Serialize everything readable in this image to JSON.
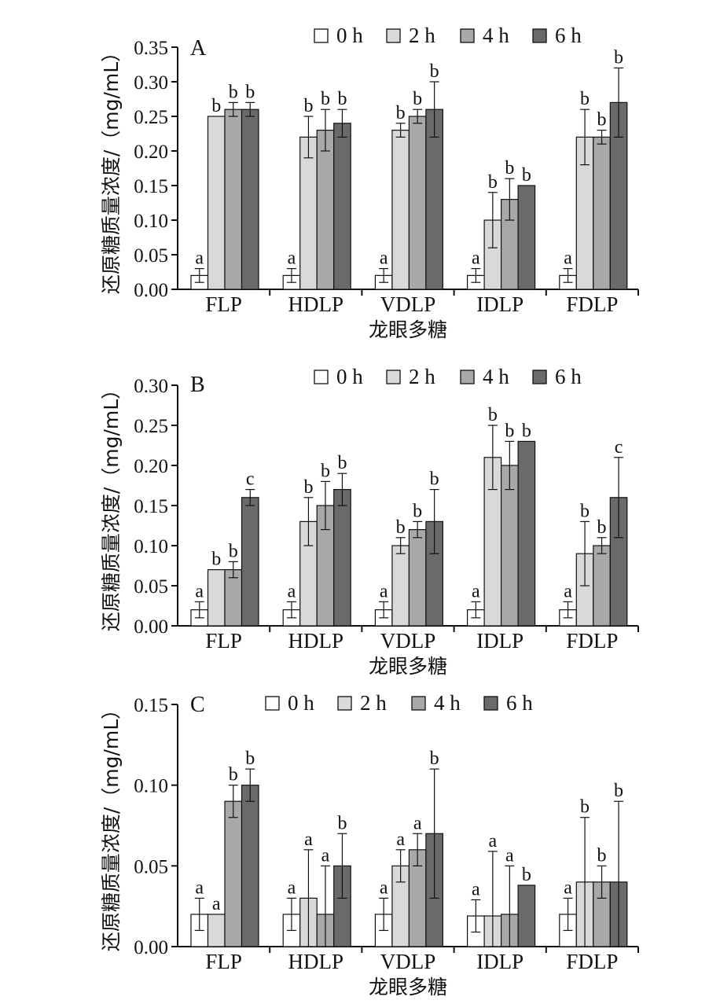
{
  "chart_data": [
    {
      "type": "bar",
      "panel": "A",
      "categories": [
        "FLP",
        "HDLP",
        "VDLP",
        "IDLP",
        "FDLP"
      ],
      "xlabel": "龙眼多糖",
      "ylabel": "还原糖质量浓度/（mg/mL）",
      "ylim": [
        0,
        0.35
      ],
      "yticks": [
        "0.00",
        "0.05",
        "0.10",
        "0.15",
        "0.20",
        "0.25",
        "0.30",
        "0.35"
      ],
      "legend_position": "top",
      "grid": false,
      "series": [
        {
          "name": "0 h",
          "values": [
            0.02,
            0.02,
            0.02,
            0.02,
            0.02
          ],
          "errors": [
            0.01,
            0.01,
            0.01,
            0.01,
            0.01
          ],
          "labels": [
            "a",
            "a",
            "a",
            "a",
            "a"
          ]
        },
        {
          "name": "2 h",
          "values": [
            0.25,
            0.22,
            0.23,
            0.1,
            0.22
          ],
          "errors": [
            0.0,
            0.03,
            0.01,
            0.04,
            0.04
          ],
          "labels": [
            "b",
            "b",
            "b",
            "b",
            "b"
          ]
        },
        {
          "name": "4 h",
          "values": [
            0.26,
            0.23,
            0.25,
            0.13,
            0.22
          ],
          "errors": [
            0.01,
            0.03,
            0.01,
            0.03,
            0.01
          ],
          "labels": [
            "b",
            "b",
            "b",
            "b",
            "b"
          ]
        },
        {
          "name": "6 h",
          "values": [
            0.26,
            0.24,
            0.26,
            0.15,
            0.27
          ],
          "errors": [
            0.01,
            0.02,
            0.04,
            0.0,
            0.05
          ],
          "labels": [
            "b",
            "b",
            "b",
            "b",
            "b"
          ]
        }
      ]
    },
    {
      "type": "bar",
      "panel": "B",
      "categories": [
        "FLP",
        "HDLP",
        "VDLP",
        "IDLP",
        "FDLP"
      ],
      "xlabel": "龙眼多糖",
      "ylabel": "还原糖质量浓度/（mg/mL）",
      "ylim": [
        0,
        0.3
      ],
      "yticks": [
        "0.00",
        "0.05",
        "0.10",
        "0.15",
        "0.20",
        "0.25",
        "0.30"
      ],
      "legend_position": "top",
      "grid": false,
      "series": [
        {
          "name": "0 h",
          "values": [
            0.02,
            0.02,
            0.02,
            0.02,
            0.02
          ],
          "errors": [
            0.01,
            0.01,
            0.01,
            0.01,
            0.01
          ],
          "labels": [
            "a",
            "a",
            "a",
            "a",
            "a"
          ]
        },
        {
          "name": "2 h",
          "values": [
            0.07,
            0.13,
            0.1,
            0.21,
            0.09
          ],
          "errors": [
            0.0,
            0.03,
            0.01,
            0.04,
            0.04
          ],
          "labels": [
            "b",
            "b",
            "b",
            "b",
            "b"
          ]
        },
        {
          "name": "4 h",
          "values": [
            0.07,
            0.15,
            0.12,
            0.2,
            0.1
          ],
          "errors": [
            0.01,
            0.03,
            0.01,
            0.03,
            0.01
          ],
          "labels": [
            "b",
            "b",
            "b",
            "b",
            "b"
          ]
        },
        {
          "name": "6 h",
          "values": [
            0.16,
            0.17,
            0.13,
            0.23,
            0.16
          ],
          "errors": [
            0.01,
            0.02,
            0.04,
            0.0,
            0.05
          ],
          "labels": [
            "c",
            "b",
            "b",
            "b",
            "c"
          ]
        }
      ]
    },
    {
      "type": "bar",
      "panel": "C",
      "categories": [
        "FLP",
        "HDLP",
        "VDLP",
        "IDLP",
        "FDLP"
      ],
      "xlabel": "龙眼多糖",
      "ylabel": "还原糖质量浓度/（mg/mL）",
      "ylim": [
        0,
        0.15
      ],
      "yticks": [
        "0.00",
        "0.05",
        "0.10",
        "0.15"
      ],
      "legend_position": "top",
      "grid": false,
      "series": [
        {
          "name": "0 h",
          "values": [
            0.02,
            0.02,
            0.02,
            0.019,
            0.02
          ],
          "errors": [
            0.01,
            0.01,
            0.01,
            0.01,
            0.01
          ],
          "labels": [
            "a",
            "a",
            "a",
            "a",
            "a"
          ]
        },
        {
          "name": "2 h",
          "values": [
            0.02,
            0.03,
            0.05,
            0.019,
            0.04
          ],
          "errors": [
            0.0,
            0.03,
            0.01,
            0.04,
            0.04
          ],
          "labels": [
            "a",
            "a",
            "a",
            "a",
            "b"
          ]
        },
        {
          "name": "4 h",
          "values": [
            0.09,
            0.02,
            0.06,
            0.02,
            0.04
          ],
          "errors": [
            0.01,
            0.03,
            0.01,
            0.03,
            0.01
          ],
          "labels": [
            "b",
            "a",
            "a",
            "a",
            "b"
          ]
        },
        {
          "name": "6 h",
          "values": [
            0.1,
            0.05,
            0.07,
            0.038,
            0.04
          ],
          "errors": [
            0.01,
            0.02,
            0.04,
            0.0,
            0.05
          ],
          "labels": [
            "b",
            "b",
            "b",
            "b",
            "b"
          ]
        }
      ]
    }
  ],
  "colors": {
    "0 h": "#ffffff",
    "2 h": "#d9d9d9",
    "4 h": "#a8a8a8",
    "6 h": "#6a6a6a",
    "stroke": "#111111"
  }
}
